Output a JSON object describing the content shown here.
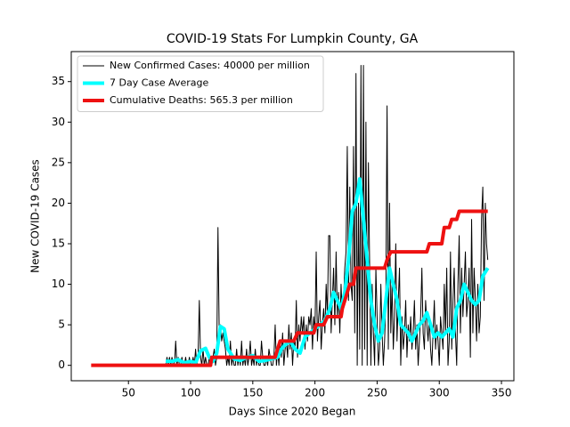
{
  "chart_data": {
    "type": "line",
    "title": "COVID-19 Stats For Lumpkin County, GA",
    "xlabel": "Days Since 2020 Began",
    "ylabel": "New COVID-19 Cases",
    "xlim": [
      4,
      360
    ],
    "ylim": [
      -1.9,
      38.7
    ],
    "xticks": [
      50,
      100,
      150,
      200,
      250,
      300,
      350
    ],
    "yticks": [
      0,
      5,
      10,
      15,
      20,
      25,
      30,
      35
    ],
    "legend": "upper left",
    "series": [
      {
        "name": "New Confirmed Cases: 40000 per million",
        "color": "#000000",
        "width": 1,
        "x": [
          80,
          81,
          82,
          83,
          84,
          85,
          86,
          87,
          88,
          89,
          90,
          91,
          92,
          93,
          94,
          95,
          96,
          97,
          98,
          99,
          100,
          101,
          102,
          103,
          104,
          105,
          106,
          107,
          108,
          109,
          110,
          111,
          112,
          113,
          114,
          115,
          116,
          117,
          118,
          119,
          120,
          121,
          122,
          123,
          124,
          125,
          126,
          127,
          128,
          129,
          130,
          131,
          132,
          133,
          134,
          135,
          136,
          137,
          138,
          139,
          140,
          141,
          142,
          143,
          144,
          145,
          146,
          147,
          148,
          149,
          150,
          151,
          152,
          153,
          154,
          155,
          156,
          157,
          158,
          159,
          160,
          161,
          162,
          163,
          164,
          165,
          166,
          167,
          168,
          169,
          170,
          171,
          172,
          173,
          174,
          175,
          176,
          177,
          178,
          179,
          180,
          181,
          182,
          183,
          184,
          185,
          186,
          187,
          188,
          189,
          190,
          191,
          192,
          193,
          194,
          195,
          196,
          197,
          198,
          199,
          200,
          201,
          202,
          203,
          204,
          205,
          206,
          207,
          208,
          209,
          210,
          211,
          212,
          213,
          214,
          215,
          216,
          217,
          218,
          219,
          220,
          221,
          222,
          223,
          224,
          225,
          226,
          227,
          228,
          229,
          230,
          231,
          232,
          233,
          234,
          235,
          236,
          237,
          238,
          239,
          240,
          241,
          242,
          243,
          244,
          245,
          246,
          247,
          248,
          249,
          250,
          251,
          252,
          253,
          254,
          255,
          256,
          257,
          258,
          259,
          260,
          261,
          262,
          263,
          264,
          265,
          266,
          267,
          268,
          269,
          270,
          271,
          272,
          273,
          274,
          275,
          276,
          277,
          278,
          279,
          280,
          281,
          282,
          283,
          284,
          285,
          286,
          287,
          288,
          289,
          290,
          291,
          292,
          293,
          294,
          295,
          296,
          297,
          298,
          299,
          300,
          301,
          302,
          303,
          304,
          305,
          306,
          307,
          308,
          309,
          310,
          311,
          312,
          313,
          314,
          315,
          316,
          317,
          318,
          319,
          320,
          321,
          322,
          323,
          324,
          325,
          326,
          327,
          328,
          329,
          330,
          331,
          332,
          333,
          334,
          335,
          336,
          337,
          338,
          339
        ],
        "values": [
          0,
          1,
          0,
          1,
          0,
          1,
          0,
          0,
          3,
          0,
          1,
          0,
          0,
          1,
          0,
          0,
          1,
          0,
          0,
          1,
          0,
          0,
          1,
          0,
          2,
          0,
          1,
          8,
          1,
          0,
          2,
          0,
          1,
          0,
          0,
          1,
          0,
          0,
          1,
          2,
          0,
          1,
          17,
          4,
          5,
          3,
          4,
          3,
          2,
          0,
          1,
          0,
          3,
          0,
          1,
          0,
          0,
          2,
          0,
          1,
          0,
          3,
          0,
          1,
          0,
          2,
          0,
          1,
          3,
          0,
          1,
          0,
          2,
          0,
          1,
          0,
          0,
          3,
          1,
          0,
          0,
          1,
          0,
          2,
          1,
          0,
          0,
          1,
          5,
          0,
          2,
          0,
          3,
          1,
          4,
          0,
          2,
          3,
          1,
          5,
          2,
          4,
          0,
          3,
          2,
          8,
          1,
          5,
          3,
          6,
          4,
          6,
          2,
          5,
          3,
          6,
          5,
          7,
          2,
          6,
          4,
          14,
          3,
          6,
          8,
          2,
          5,
          7,
          4,
          10,
          6,
          16,
          16,
          4,
          8,
          12,
          5,
          14,
          6,
          9,
          4,
          10,
          6,
          8,
          12,
          14,
          27,
          8,
          22,
          10,
          8,
          27,
          4,
          36,
          0,
          20,
          2,
          37,
          0,
          37,
          2,
          30,
          0,
          25,
          12,
          0,
          10,
          4,
          0,
          12,
          6,
          0,
          2,
          10,
          4,
          0,
          3,
          8,
          32,
          2,
          20,
          4,
          10,
          2,
          6,
          15,
          3,
          8,
          12,
          0,
          6,
          2,
          4,
          8,
          1,
          5,
          3,
          6,
          2,
          4,
          8,
          2,
          5,
          0,
          3,
          6,
          12,
          4,
          2,
          8,
          5,
          3,
          6,
          2,
          0,
          4,
          8,
          2,
          5,
          3,
          0,
          6,
          4,
          2,
          10,
          4,
          12,
          0,
          3,
          14,
          2,
          8,
          12,
          4,
          0,
          10,
          16,
          4,
          12,
          6,
          10,
          14,
          6,
          8,
          12,
          1,
          18,
          4,
          12,
          8,
          3,
          10,
          4,
          6,
          18,
          22,
          8,
          20,
          15,
          13
        ]
      },
      {
        "name": "7 Day Case Average",
        "color": "#00ffff",
        "width": 4,
        "x": [
          80,
          85,
          90,
          95,
          100,
          104,
          108,
          112,
          115,
          118,
          121,
          124,
          127,
          130,
          135,
          140,
          145,
          150,
          155,
          160,
          165,
          170,
          173,
          176,
          180,
          184,
          188,
          192,
          196,
          200,
          204,
          208,
          212,
          215,
          218,
          221,
          224,
          227,
          230,
          233,
          236,
          239,
          242,
          245,
          248,
          251,
          254,
          257,
          260,
          263,
          266,
          269,
          272,
          275,
          278,
          281,
          284,
          287,
          290,
          293,
          296,
          299,
          302,
          305,
          308,
          311,
          314,
          317,
          320,
          323,
          326,
          329,
          332,
          335,
          339
        ],
        "values": [
          0.5,
          0.5,
          0.7,
          0.3,
          0.5,
          0.3,
          1.8,
          2.1,
          1,
          0.5,
          1.5,
          4.8,
          4.5,
          2,
          0.8,
          0.6,
          1,
          1.2,
          0.5,
          0.6,
          0.8,
          1,
          2,
          2.5,
          3,
          2,
          1.5,
          3.5,
          4,
          4.5,
          5,
          5.5,
          7,
          9,
          8,
          7,
          9,
          13,
          19,
          20,
          23,
          18,
          13,
          8,
          5,
          3,
          4,
          8,
          12,
          10,
          8,
          5,
          4.5,
          4,
          3,
          4,
          5,
          5.5,
          6.5,
          5,
          3.5,
          4,
          3.5,
          4,
          4.5,
          3.5,
          7,
          8,
          10,
          9,
          8,
          7.5,
          8,
          11,
          12
        ]
      },
      {
        "name": "Cumulative Deaths: 565.3 per million",
        "color": "#ee1111",
        "width": 4,
        "x": [
          20,
          116,
          117,
          168,
          170,
          172,
          183,
          186,
          199,
          201,
          207,
          210,
          221,
          222,
          224,
          226,
          228,
          231,
          233,
          256,
          258,
          261,
          290,
          292,
          302,
          304,
          308,
          310,
          314,
          316,
          339
        ],
        "values": [
          0,
          0,
          1,
          1,
          2,
          3,
          3,
          4,
          4,
          5,
          5,
          6,
          6,
          7,
          8,
          9,
          10,
          10,
          12,
          12,
          13,
          14,
          14,
          15,
          15,
          17,
          17,
          18,
          18,
          19,
          19
        ]
      }
    ]
  }
}
